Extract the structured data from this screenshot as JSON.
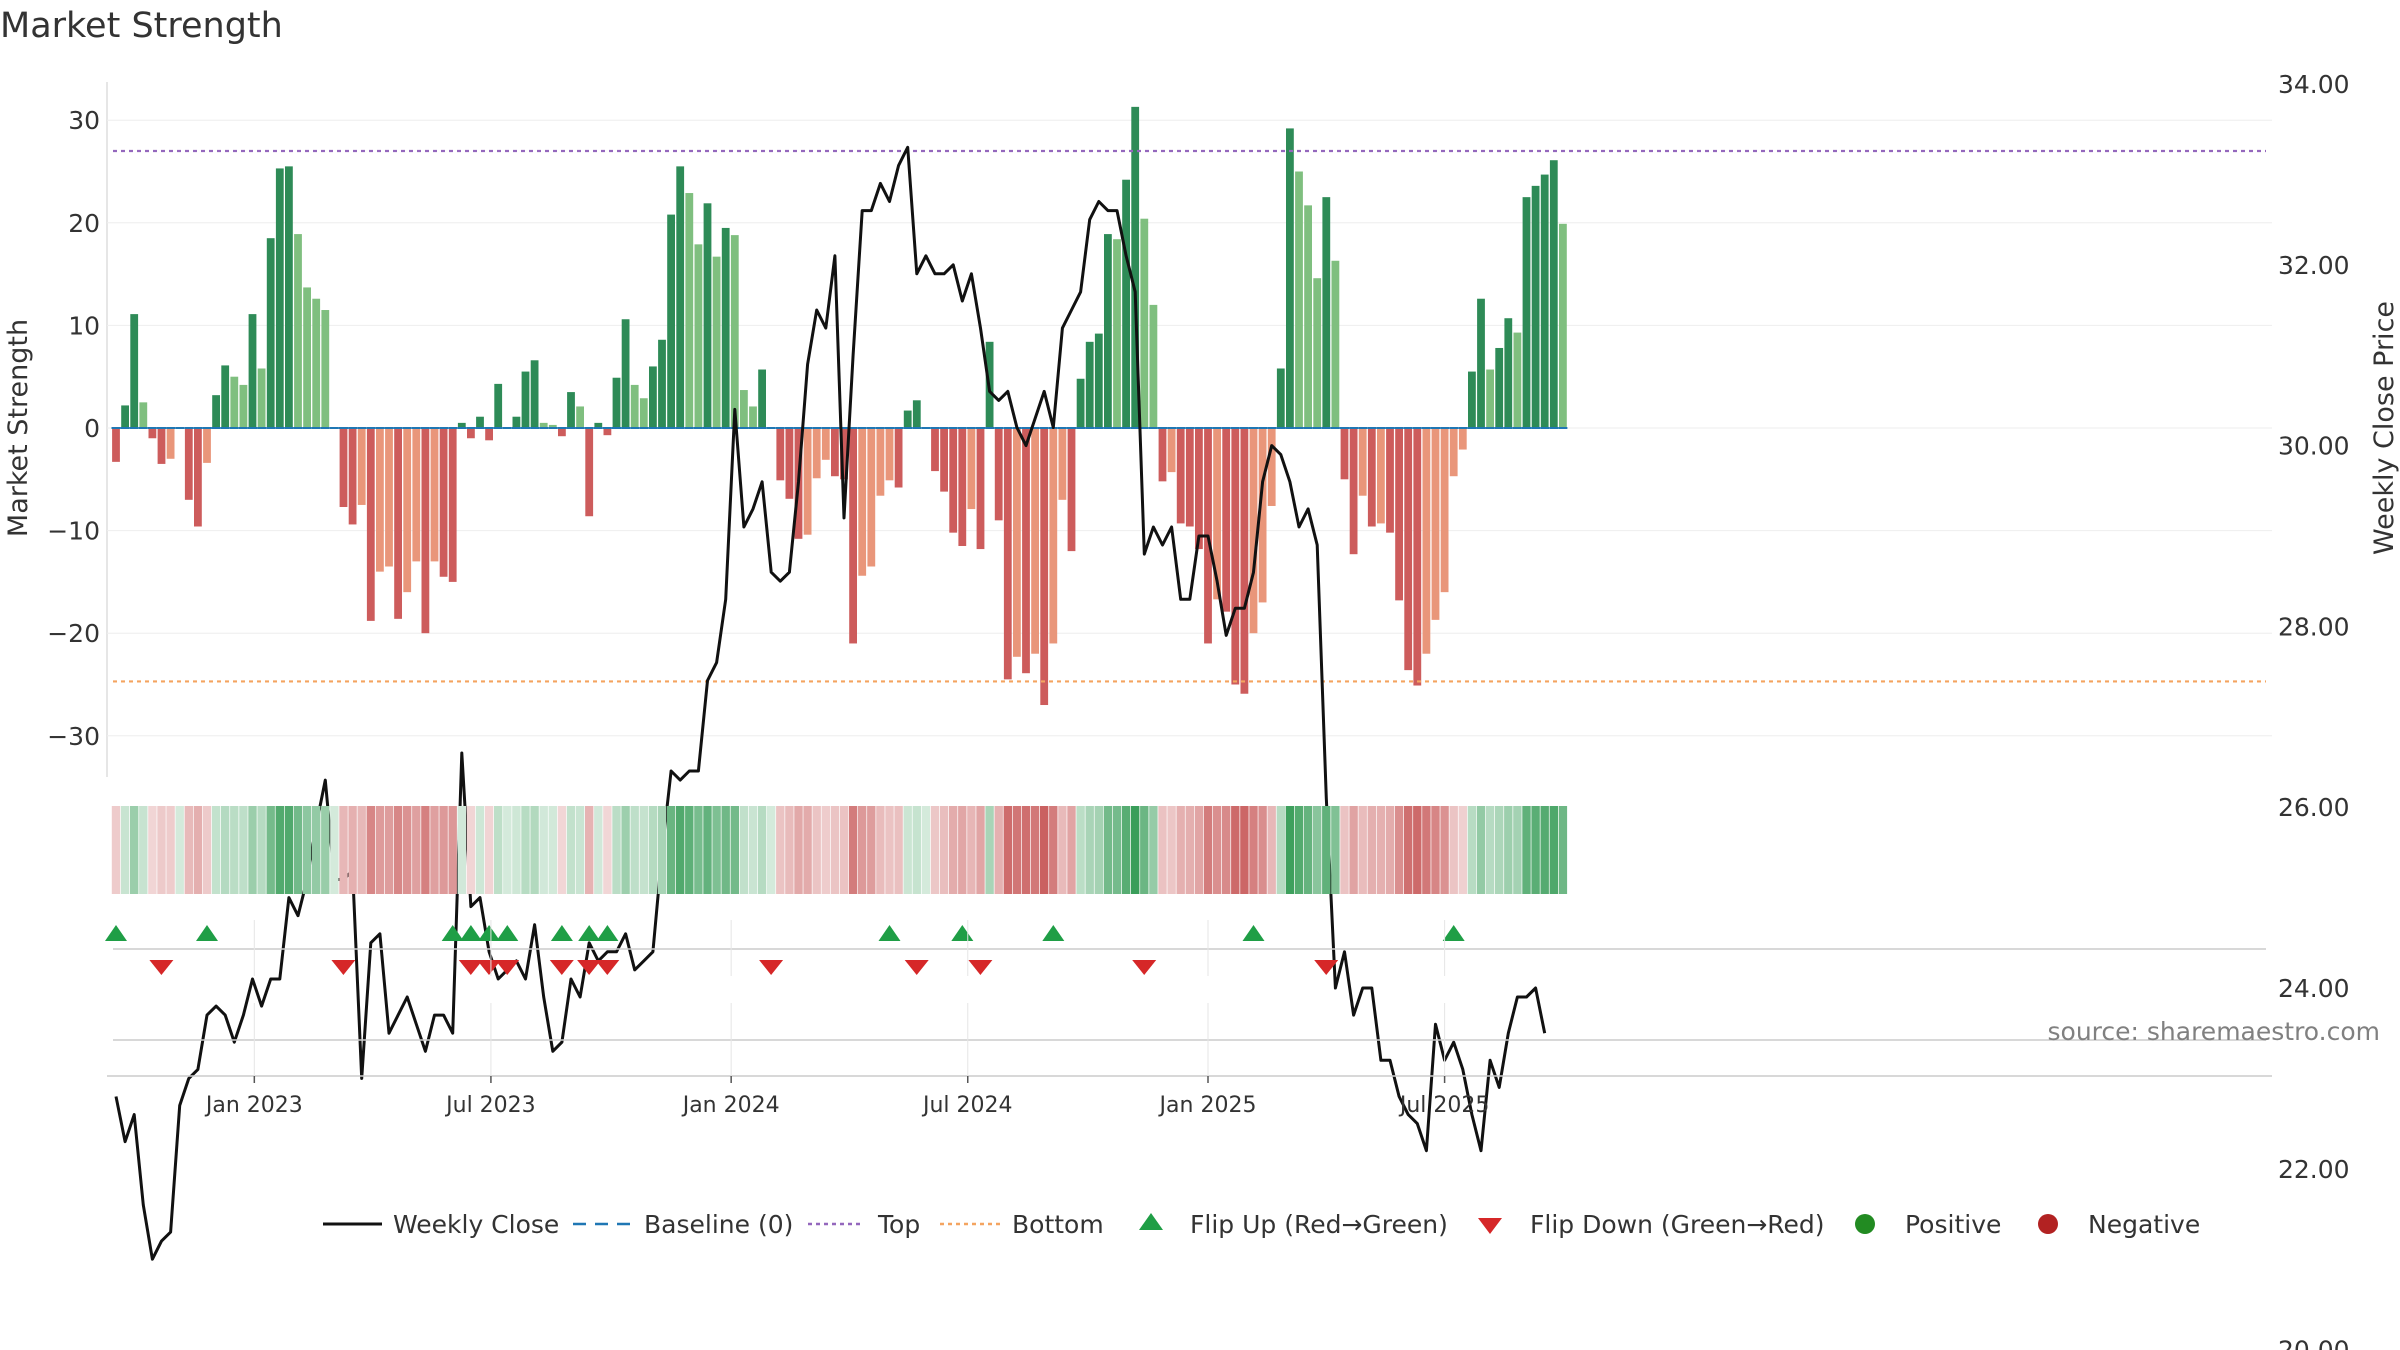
{
  "chart_data": {
    "type": "bar",
    "title": "Market Strength",
    "ylabel": "Market Strength",
    "y2label": "Weekly Close Price",
    "ylim": [
      -34,
      34.8
    ],
    "y2lim": [
      19.0,
      34.0
    ],
    "yticks": [
      "30",
      "20",
      "10",
      "0",
      "−10",
      "−20",
      "−30"
    ],
    "ytick_values": [
      30,
      20,
      10,
      0,
      -10,
      -20,
      -30
    ],
    "y2ticks": [
      "34.00",
      "32.00",
      "30.00",
      "28.00",
      "26.00",
      "24.00",
      "22.00",
      "20.00"
    ],
    "y2tick_values": [
      34,
      32,
      30,
      28,
      26,
      24,
      22,
      20
    ],
    "xticks": [
      "Jan 2023",
      "Jul 2023",
      "Jan 2024",
      "Jul 2024",
      "Jan 2025",
      "Jul 2025"
    ],
    "xtick_weeks": [
      15.2,
      41.2,
      67.6,
      93.6,
      120,
      146
    ],
    "top_line": 27,
    "bottom_line": -24.7,
    "source": "source: sharemaestro.com",
    "legend": [
      "Weekly Close",
      "Baseline (0)",
      "Top",
      "Bottom",
      "Flip Up (Red→Green)",
      "Flip Down (Green→Red)",
      "Positive",
      "Negative"
    ],
    "colors": {
      "pos_dark": "#2e8b57",
      "pos_light": "#7fbf7f",
      "neg_dark": "#cd5c5c",
      "neg_light": "#e9967a",
      "top": "#9467bd",
      "bottom": "#f4a460",
      "baseline": "#1f77b4",
      "close": "#111111",
      "flip_up": "#1f9e46",
      "flip_down": "#d62728",
      "positive": "#228b22",
      "negative": "#b22222"
    },
    "strength": [
      -3.3,
      2.2,
      11.1,
      2.5,
      -1.0,
      -3.5,
      -3.0,
      0,
      -7,
      -9.6,
      -3.4,
      3.2,
      6.1,
      5.0,
      4.2,
      11.1,
      5.8,
      18.5,
      25.3,
      25.5,
      18.9,
      13.7,
      12.6,
      11.5,
      0,
      -7.7,
      -9.4,
      -7.5,
      -18.8,
      -14,
      -13.5,
      -18.6,
      -16,
      -13,
      -20,
      -13,
      -14.5,
      -15,
      0.5,
      -1.0,
      1.1,
      -1.2,
      4.3,
      0,
      1.1,
      5.5,
      6.6,
      0.5,
      0.3,
      -0.8,
      3.5,
      2.1,
      -8.6,
      0.5,
      -0.7,
      4.9,
      10.6,
      4.2,
      2.9,
      6.0,
      8.6,
      20.8,
      25.5,
      22.9,
      17.9,
      21.9,
      16.7,
      19.5,
      18.8,
      3.7,
      2.1,
      5.7,
      0,
      -5.1,
      -6.9,
      -10.8,
      -10.4,
      -4.9,
      -3.1,
      -4.7,
      -5,
      -21,
      -14.4,
      -13.5,
      -6.6,
      -5.1,
      -5.8,
      1.7,
      2.7,
      0,
      -4.2,
      -6.2,
      -10.2,
      -11.5,
      -7.9,
      -11.8,
      8.4,
      -9.0,
      -24.5,
      -22.3,
      -23.9,
      -22.0,
      -27,
      -21,
      -7.0,
      -12,
      4.8,
      8.4,
      9.2,
      18.9,
      18.4,
      24.2,
      31.3,
      20.4,
      12.0,
      -5.2,
      -4.3,
      -9.3,
      -9.6,
      -11.8,
      -21,
      -16.7,
      -17.9,
      -25,
      -25.9,
      -20,
      -17,
      -7.6,
      5.8,
      29.2,
      25.0,
      21.7,
      14.6,
      22.5,
      16.3,
      -5.0,
      -12.3,
      -6.6,
      -9.6,
      -9.3,
      -10.2,
      -16.8,
      -23.6,
      -25.1,
      -22,
      -18.7,
      -16,
      -4.7,
      -2.1,
      5.5,
      12.6,
      5.7,
      7.8,
      10.7,
      9.3,
      22.5,
      23.6,
      24.7,
      26.1,
      19.9
    ],
    "close": [
      22.8,
      22.3,
      22.6,
      21.6,
      21.0,
      21.2,
      21.3,
      22.7,
      23.0,
      23.1,
      23.7,
      23.8,
      23.7,
      23.4,
      23.7,
      24.1,
      23.8,
      24.1,
      24.1,
      25.0,
      24.8,
      25.2,
      25.8,
      26.3,
      25.2,
      25.2,
      25.3,
      23.0,
      24.5,
      24.6,
      23.5,
      23.7,
      23.9,
      23.6,
      23.3,
      23.7,
      23.7,
      23.5,
      26.6,
      24.9,
      25.0,
      24.4,
      24.1,
      24.2,
      24.3,
      24.1,
      24.7,
      23.9,
      23.3,
      23.4,
      24.1,
      23.9,
      24.5,
      24.3,
      24.4,
      24.4,
      24.6,
      24.2,
      24.3,
      24.4,
      25.5,
      26.4,
      26.3,
      26.4,
      26.4,
      27.4,
      27.6,
      28.3,
      30.4,
      29.1,
      29.3,
      29.6,
      28.6,
      28.5,
      28.6,
      29.6,
      30.9,
      31.5,
      31.3,
      32.1,
      29.2,
      31.0,
      32.6,
      32.6,
      32.9,
      32.7,
      33.1,
      33.3,
      31.9,
      32.1,
      31.9,
      31.9,
      32.0,
      31.6,
      31.9,
      31.3,
      30.6,
      30.5,
      30.6,
      30.2,
      30.0,
      30.3,
      30.6,
      30.2,
      31.3,
      31.5,
      31.7,
      32.5,
      32.7,
      32.6,
      32.6,
      32.1,
      31.7,
      28.8,
      29.1,
      28.9,
      29.1,
      28.3,
      28.3,
      29.0,
      29.0,
      28.5,
      27.9,
      28.2,
      28.2,
      28.6,
      29.6,
      30.0,
      29.9,
      29.6,
      29.1,
      29.3,
      28.9,
      26.1,
      24.0,
      24.4,
      23.7,
      24.0,
      24.0,
      23.2,
      23.2,
      22.8,
      22.6,
      22.5,
      22.2,
      23.6,
      23.2,
      23.4,
      23.1,
      22.6,
      22.2,
      23.2,
      22.9,
      23.5,
      23.9,
      23.9,
      24.0,
      23.5
    ],
    "flip_up_weeks": [
      0,
      10,
      37,
      39,
      41,
      43,
      49,
      52,
      54,
      85,
      93,
      103,
      125,
      147
    ],
    "flip_down_weeks": [
      4,
      24,
      38,
      40,
      42,
      48,
      51,
      53,
      71,
      87,
      94,
      112,
      132
    ]
  }
}
